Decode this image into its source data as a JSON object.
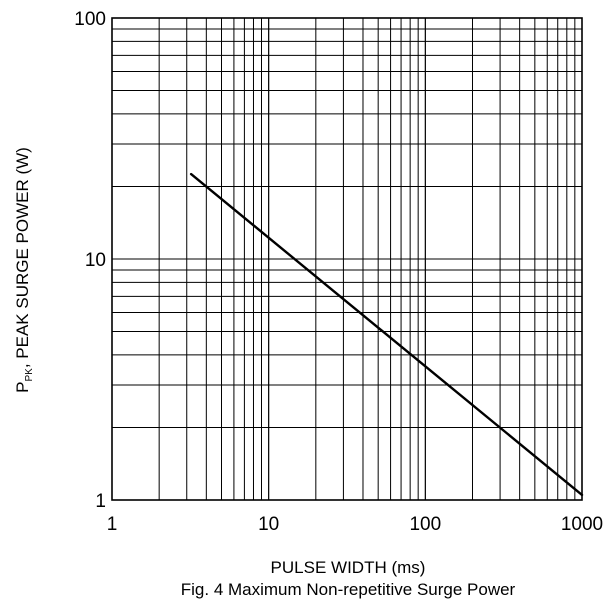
{
  "chart_data": {
    "type": "line",
    "x_scale": "log",
    "y_scale": "log",
    "xlim": [
      1,
      1000
    ],
    "ylim": [
      1,
      100
    ],
    "grid": true,
    "x_ticks": [
      "1",
      "10",
      "100",
      "1000"
    ],
    "y_ticks": [
      "1",
      "10",
      "100"
    ],
    "xlabel": "PULSE WIDTH (ms)",
    "ylabel": {
      "main": "P",
      "sub": "PK",
      "rest": ", PEAK SURGE POWER (W)"
    },
    "caption": "Fig. 4  Maximum Non-repetitive Surge Power",
    "series": [
      {
        "x": [
          3.2,
          1000
        ],
        "y": [
          22.5,
          1.05
        ]
      }
    ]
  }
}
